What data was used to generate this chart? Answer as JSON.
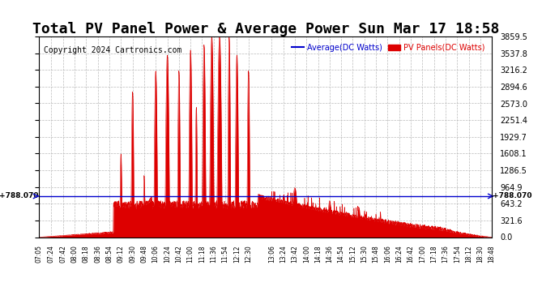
{
  "title": "Total PV Panel Power & Average Power Sun Mar 17 18:58",
  "copyright": "Copyright 2024 Cartronics.com",
  "legend_avg": "Average(DC Watts)",
  "legend_pv": "PV Panels(DC Watts)",
  "avg_value": 788.07,
  "ymax": 3859.5,
  "ymin": 0.0,
  "yticks": [
    0.0,
    321.6,
    643.2,
    964.9,
    1286.5,
    1608.1,
    1929.7,
    2251.4,
    2573.0,
    2894.6,
    3216.2,
    3537.8,
    3859.5
  ],
  "xtick_labels": [
    "07:05",
    "07:24",
    "07:42",
    "08:00",
    "08:18",
    "08:36",
    "08:54",
    "09:12",
    "09:30",
    "09:48",
    "10:06",
    "10:24",
    "10:42",
    "11:00",
    "11:18",
    "11:36",
    "11:54",
    "12:12",
    "12:30",
    "13:06",
    "13:24",
    "13:42",
    "14:00",
    "14:18",
    "14:36",
    "14:54",
    "15:12",
    "15:30",
    "15:48",
    "16:06",
    "16:24",
    "16:42",
    "17:00",
    "17:18",
    "17:36",
    "17:54",
    "18:12",
    "18:30",
    "18:48"
  ],
  "bg_color": "#ffffff",
  "grid_color": "#bbbbbb",
  "pv_color": "#dd0000",
  "avg_color": "#0000cc",
  "title_fontsize": 13,
  "copyright_fontsize": 7,
  "tick_fontsize": 7
}
